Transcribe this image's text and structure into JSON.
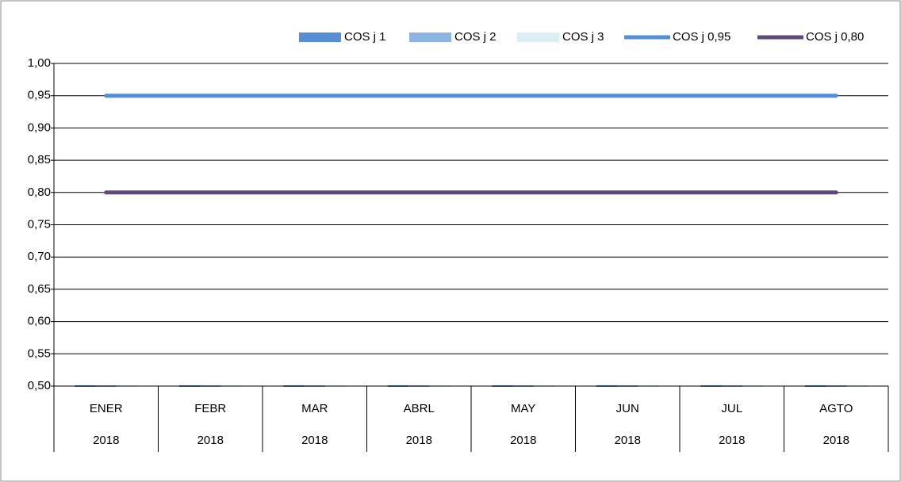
{
  "chart_data": {
    "type": "bar_line",
    "categories": [
      "ENER",
      "FEBR",
      "MAR",
      "ABRL",
      "MAY",
      "JUN",
      "JUL",
      "AGTO"
    ],
    "years": [
      "2018",
      "2018",
      "2018",
      "2018",
      "2018",
      "2018",
      "2018",
      "2018"
    ],
    "series": [
      {
        "name": "COS j 1",
        "kind": "bar",
        "color": "#558ed5",
        "values": [
          0.5,
          0.5,
          0.5,
          0.5,
          0.5,
          0.5,
          0.5,
          0.5
        ]
      },
      {
        "name": "COS j 2",
        "kind": "bar",
        "color": "#8eb4e3",
        "values": [
          0.5,
          0.5,
          0.5,
          0.5,
          0.5,
          0.5,
          0.5,
          0.5
        ]
      },
      {
        "name": "COS j 3",
        "kind": "bar",
        "color": "#dbeef4",
        "values": [
          0.5,
          0.5,
          0.5,
          0.5,
          0.5,
          0.5,
          0.5,
          0.5
        ]
      },
      {
        "name": "COS j 0,95",
        "kind": "line",
        "color": "#558ed5",
        "values": [
          0.95,
          0.95,
          0.95,
          0.95,
          0.95,
          0.95,
          0.95,
          0.95
        ]
      },
      {
        "name": "COS j 0,80",
        "kind": "line",
        "color": "#604a7b",
        "values": [
          0.8,
          0.8,
          0.8,
          0.8,
          0.8,
          0.8,
          0.8,
          0.8
        ]
      }
    ],
    "ylim": [
      0.5,
      1
    ],
    "yticks": [
      {
        "value": 0.5,
        "label": "0,50"
      },
      {
        "value": 0.55,
        "label": "0,55"
      },
      {
        "value": 0.6,
        "label": "0,60"
      },
      {
        "value": 0.65,
        "label": "0,65"
      },
      {
        "value": 0.7,
        "label": "0,70"
      },
      {
        "value": 0.75,
        "label": "0,75"
      },
      {
        "value": 0.8,
        "label": "0,80"
      },
      {
        "value": 0.85,
        "label": "0,85"
      },
      {
        "value": 0.9,
        "label": "0,90"
      },
      {
        "value": 0.95,
        "label": "0,95"
      },
      {
        "value": 1,
        "label": "1,00"
      }
    ],
    "grid": true,
    "legend": "top"
  }
}
